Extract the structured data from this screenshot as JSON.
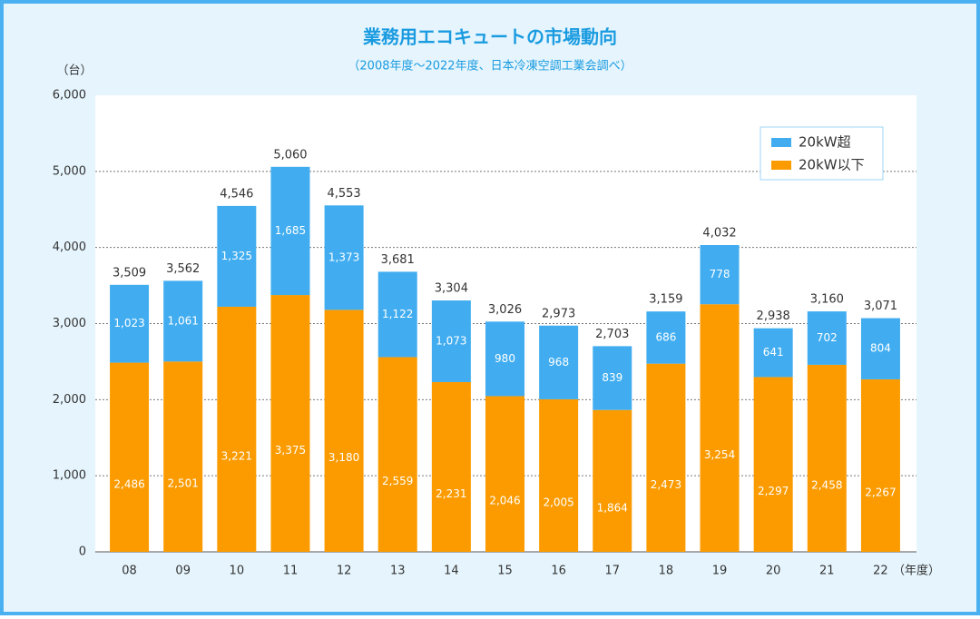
{
  "chart_data": {
    "type": "stacked_bar",
    "title": "業務用エコキュートの市場動向",
    "subtitle": "（2008年度～2022年度、日本冷凍空調工業会調べ）",
    "y_unit": "（台）",
    "x_unit": "（年度）",
    "categories": [
      "08",
      "09",
      "10",
      "11",
      "12",
      "13",
      "14",
      "15",
      "16",
      "17",
      "18",
      "19",
      "20",
      "21",
      "22"
    ],
    "series": [
      {
        "name": "20kW以下",
        "color": "#fb9b00",
        "values": [
          2486,
          2501,
          3221,
          3375,
          3180,
          2559,
          2231,
          2046,
          2005,
          1864,
          2473,
          3254,
          2297,
          2458,
          2267
        ],
        "value_labels": [
          "2,486",
          "2,501",
          "3,221",
          "3,375",
          "3,180",
          "2,559",
          "2,231",
          "2,046",
          "2,005",
          "1,864",
          "2,473",
          "3,254",
          "2,297",
          "2,458",
          "2,267"
        ]
      },
      {
        "name": "20kW超",
        "color": "#41adf0",
        "values": [
          1023,
          1061,
          1325,
          1685,
          1373,
          1122,
          1073,
          980,
          968,
          839,
          686,
          778,
          641,
          702,
          804
        ],
        "value_labels": [
          "1,023",
          "1,061",
          "1,325",
          "1,685",
          "1,373",
          "1,122",
          "1,073",
          "980",
          "968",
          "839",
          "686",
          "778",
          "641",
          "702",
          "804"
        ]
      }
    ],
    "totals": {
      "values": [
        3509,
        3562,
        4546,
        5060,
        4553,
        3681,
        3304,
        3026,
        2973,
        2703,
        3159,
        4032,
        2938,
        3160,
        3071
      ],
      "value_labels": [
        "3,509",
        "3,562",
        "4,546",
        "5,060",
        "4,553",
        "3,681",
        "3,304",
        "3,026",
        "2,973",
        "2,703",
        "3,159",
        "4,032",
        "2,938",
        "3,160",
        "3,071"
      ]
    },
    "ylim": [
      0,
      6000
    ],
    "yticks": [
      0,
      {
        "value": 1000,
        "label": "1,000"
      },
      {
        "value": 2000,
        "label": "2,000"
      },
      {
        "value": 3000,
        "label": "3,000"
      },
      {
        "value": 4000,
        "label": "4,000"
      },
      {
        "value": 5000,
        "label": "5,000"
      },
      {
        "value": 6000,
        "label": "6,000"
      }
    ],
    "grid": true,
    "legend_position": "upper-right"
  }
}
